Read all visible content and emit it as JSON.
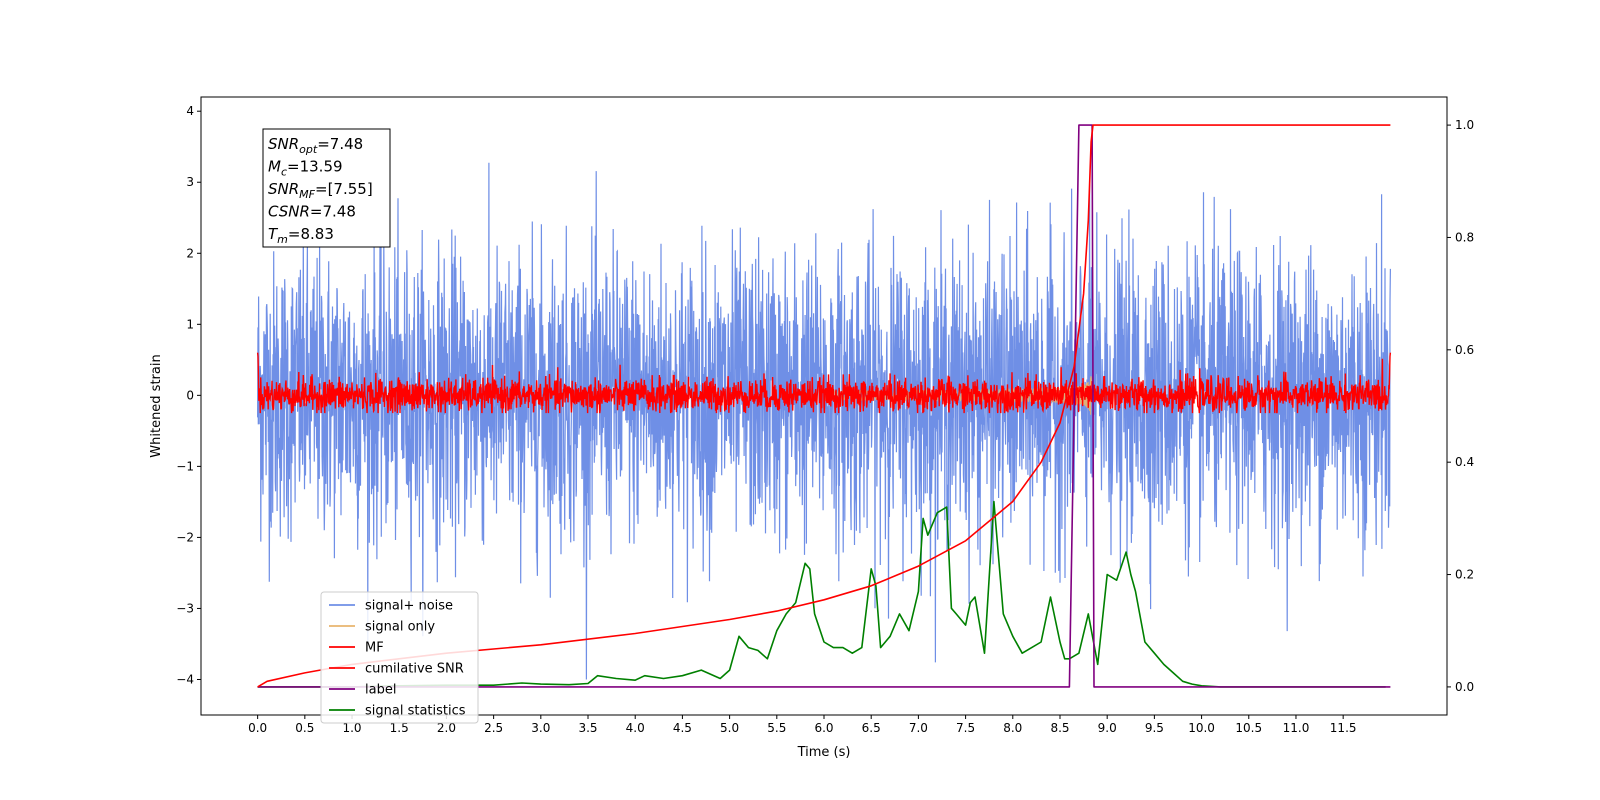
{
  "chart_data": {
    "type": "line",
    "xlabel": "Time (s)",
    "ylabel": "Whitened strain",
    "xlim": [
      -0.6,
      12.6
    ],
    "ylim": [
      -4.5,
      4.2
    ],
    "y2lim": [
      -0.05,
      1.05
    ],
    "x_ticks": [
      0.0,
      0.5,
      1.0,
      1.5,
      2.0,
      2.5,
      3.0,
      3.5,
      4.0,
      4.5,
      5.0,
      5.5,
      6.0,
      6.5,
      7.0,
      7.5,
      8.0,
      8.5,
      9.0,
      9.5,
      10.0,
      10.5,
      11.0,
      11.5
    ],
    "x_tick_labels": [
      "0.0",
      "0.5",
      "1.0",
      "1.5",
      "2.0",
      "2.5",
      "3.0",
      "3.5",
      "4.0",
      "4.5",
      "5.0",
      "5.5",
      "6.0",
      "6.5",
      "7.0",
      "7.5",
      "8.0",
      "8.5",
      "9.0",
      "9.5",
      "10.0",
      "10.5",
      "11.0",
      "11.5"
    ],
    "y_ticks": [
      4,
      3,
      2,
      1,
      0,
      -1,
      -2,
      -3,
      -4
    ],
    "y_tick_labels": [
      "4",
      "3",
      "2",
      "1",
      "0",
      "−1",
      "−2",
      "−3",
      "−4"
    ],
    "y2_ticks": [
      1.0,
      0.8,
      0.6,
      0.4,
      0.2,
      0.0
    ],
    "y2_tick_labels": [
      "1.0",
      "0.8",
      "0.6",
      "0.4",
      "0.2",
      "0.0"
    ],
    "legend_position": "lower-left",
    "series": [
      {
        "name": "signal+ noise",
        "color": "#6f8fe6",
        "axis": "left",
        "kind": "noise",
        "x_range": [
          0.0,
          12.0
        ],
        "amplitude_std": 1.0
      },
      {
        "name": "signal only",
        "color": "#e8b56e",
        "axis": "left",
        "kind": "chirp",
        "t_merger": 8.83,
        "peak_amplitude": 0.55
      },
      {
        "name": "MF",
        "color": "#ff0000",
        "axis": "left",
        "kind": "noise",
        "x_range": [
          0.0,
          12.0
        ],
        "amplitude_std": 0.12
      },
      {
        "name": "cumilative SNR",
        "color": "#ff0000",
        "axis": "right",
        "x": [
          0.0,
          0.1,
          0.5,
          1.0,
          2.0,
          3.0,
          4.0,
          5.0,
          5.5,
          6.0,
          6.5,
          7.0,
          7.5,
          8.0,
          8.3,
          8.5,
          8.65,
          8.75,
          8.8,
          8.83,
          8.85,
          12.0
        ],
        "y": [
          0.0,
          0.01,
          0.025,
          0.04,
          0.06,
          0.075,
          0.095,
          0.12,
          0.135,
          0.155,
          0.18,
          0.215,
          0.26,
          0.33,
          0.4,
          0.47,
          0.57,
          0.7,
          0.83,
          0.97,
          1.0,
          1.0
        ]
      },
      {
        "name": "label",
        "color": "#800080",
        "axis": "right",
        "x": [
          0.0,
          8.6,
          8.7,
          8.84,
          8.86,
          12.0
        ],
        "y": [
          0.0,
          0.0,
          1.0,
          1.0,
          0.0,
          0.0
        ]
      },
      {
        "name": "signal statistics",
        "color": "#008000",
        "axis": "right",
        "x": [
          0.0,
          0.5,
          1.0,
          1.5,
          2.0,
          2.5,
          2.8,
          3.0,
          3.3,
          3.5,
          3.6,
          3.8,
          4.0,
          4.1,
          4.3,
          4.5,
          4.7,
          4.9,
          5.0,
          5.1,
          5.2,
          5.3,
          5.4,
          5.5,
          5.6,
          5.7,
          5.8,
          5.85,
          5.9,
          6.0,
          6.1,
          6.2,
          6.3,
          6.4,
          6.5,
          6.55,
          6.6,
          6.7,
          6.8,
          6.9,
          7.0,
          7.05,
          7.1,
          7.2,
          7.3,
          7.35,
          7.4,
          7.5,
          7.55,
          7.6,
          7.7,
          7.8,
          7.9,
          8.0,
          8.1,
          8.2,
          8.3,
          8.4,
          8.5,
          8.55,
          8.6,
          8.7,
          8.8,
          8.9,
          9.0,
          9.1,
          9.2,
          9.25,
          9.3,
          9.4,
          9.5,
          9.6,
          9.7,
          9.8,
          9.9,
          10.0,
          10.2,
          10.5,
          11.0,
          11.5,
          11.95
        ],
        "y": [
          0.0,
          0.0,
          0.0,
          0.002,
          0.003,
          0.003,
          0.007,
          0.005,
          0.004,
          0.006,
          0.02,
          0.015,
          0.012,
          0.02,
          0.015,
          0.02,
          0.03,
          0.015,
          0.03,
          0.09,
          0.07,
          0.065,
          0.05,
          0.1,
          0.13,
          0.15,
          0.22,
          0.21,
          0.13,
          0.08,
          0.07,
          0.07,
          0.06,
          0.07,
          0.21,
          0.18,
          0.07,
          0.09,
          0.13,
          0.1,
          0.17,
          0.3,
          0.27,
          0.31,
          0.32,
          0.14,
          0.13,
          0.11,
          0.15,
          0.16,
          0.06,
          0.33,
          0.13,
          0.09,
          0.06,
          0.07,
          0.08,
          0.16,
          0.08,
          0.05,
          0.05,
          0.06,
          0.13,
          0.04,
          0.2,
          0.19,
          0.24,
          0.2,
          0.17,
          0.08,
          0.06,
          0.04,
          0.025,
          0.01,
          0.005,
          0.002,
          0.0,
          0.0,
          0.0,
          0.0,
          0.0
        ]
      }
    ],
    "annotation_box": {
      "lines": [
        {
          "sym": "SNR",
          "sub": "opt",
          "value": "=7.48"
        },
        {
          "sym": "M",
          "sub": "c",
          "value": "=13.59"
        },
        {
          "sym": "SNR",
          "sub": "MF",
          "value": "=[7.55]"
        },
        {
          "sym": "CSNR",
          "sub": "",
          "value": "=7.48"
        },
        {
          "sym": "T",
          "sub": "m",
          "value": "=8.83"
        }
      ]
    }
  }
}
